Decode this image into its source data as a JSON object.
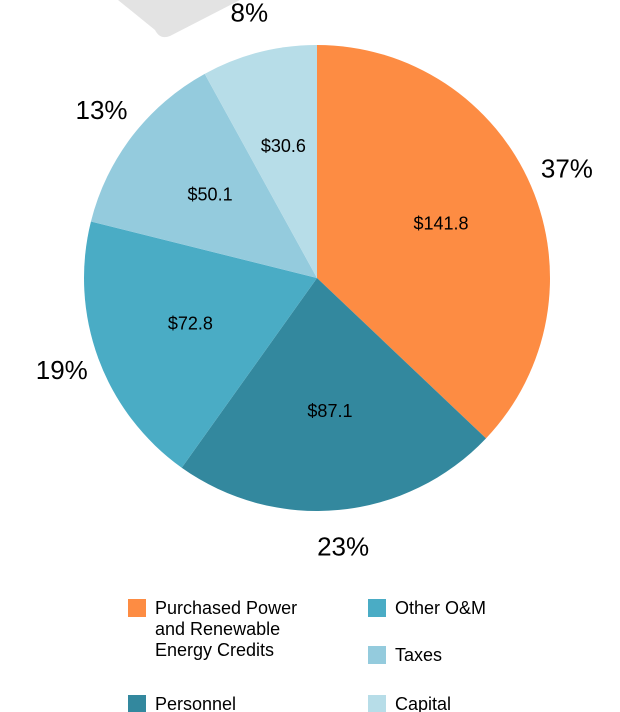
{
  "chart_data": {
    "type": "pie",
    "categories": [
      "Purchased Power and Renewable Energy Credits",
      "Personnel",
      "Other O&M",
      "Taxes",
      "Capital"
    ],
    "values": [
      141.8,
      87.1,
      72.8,
      50.1,
      30.6
    ],
    "value_labels": [
      "$141.8",
      "$87.1",
      "$72.8",
      "$50.1",
      "$30.6"
    ],
    "percent_labels": [
      "37%",
      "23%",
      "19%",
      "13%",
      "8%"
    ],
    "colors": [
      "#fd8c43",
      "#33889e",
      "#4aacc5",
      "#94cbdd",
      "#b7dde8"
    ],
    "legend": "bottom"
  }
}
